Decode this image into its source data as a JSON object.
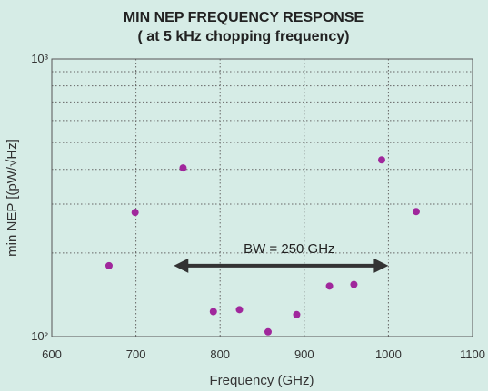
{
  "chart_data": {
    "type": "scatter",
    "title": "MIN NEP FREQUENCY RESPONSE",
    "subtitle": "( at 5 kHz chopping frequency)",
    "xlabel": "Frequency (GHz)",
    "ylabel": "min NEP [(pW/√Hz]",
    "xlim": [
      600,
      1100
    ],
    "ylim": [
      100,
      1000
    ],
    "yscale": "log",
    "x_ticks": [
      "600",
      "700",
      "800",
      "900",
      "1000",
      "1100"
    ],
    "y_ticks": [
      "10³",
      "10²"
    ],
    "grid": true,
    "marker_color": "#a0279c",
    "points": [
      {
        "x": 668,
        "y": 180
      },
      {
        "x": 699,
        "y": 280
      },
      {
        "x": 756,
        "y": 405
      },
      {
        "x": 792,
        "y": 123
      },
      {
        "x": 823,
        "y": 125
      },
      {
        "x": 857,
        "y": 104
      },
      {
        "x": 891,
        "y": 120
      },
      {
        "x": 930,
        "y": 152
      },
      {
        "x": 959,
        "y": 154
      },
      {
        "x": 992,
        "y": 433
      },
      {
        "x": 1033,
        "y": 282
      }
    ],
    "annotation": {
      "text": "BW = 250 GHz",
      "x_start": 745,
      "x_end": 1000,
      "y": 180
    }
  }
}
